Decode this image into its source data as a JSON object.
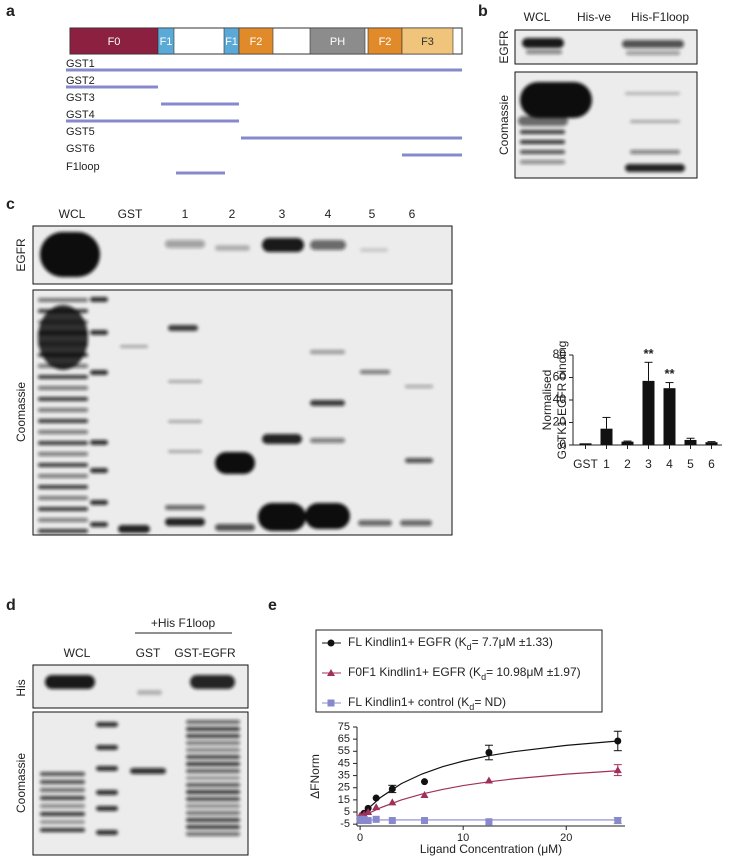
{
  "panel_labels": [
    "a",
    "b",
    "c",
    "d",
    "e"
  ],
  "panel_a": {
    "domains": [
      "F0",
      "F1",
      "F1",
      "F2",
      "PH",
      "F2",
      "F3"
    ],
    "constructs": [
      "GST1",
      "GST2",
      "GST3",
      "GST4",
      "GST5",
      "GST6",
      "F1loop"
    ]
  },
  "panel_b": {
    "lanes": [
      "WCL",
      "His-ve",
      "His-F1loop"
    ],
    "blots": [
      "EGFR",
      "Coomassie"
    ]
  },
  "panel_c": {
    "lanes": [
      "WCL",
      "GST",
      "1",
      "2",
      "3",
      "4",
      "5",
      "6"
    ],
    "blots": [
      "EGFR",
      "Coomassie"
    ]
  },
  "panel_d": {
    "treatment": "+His F1loop",
    "lanes": [
      "WCL",
      "GST",
      "GST-EGFR"
    ],
    "blots": [
      "His",
      "Coomassie"
    ]
  },
  "chart_data": [
    {
      "type": "bar",
      "categories": [
        "GST",
        "1",
        "2",
        "3",
        "4",
        "5",
        "6"
      ],
      "values": [
        1.5,
        14.5,
        3,
        57,
        50.5,
        4.5,
        2.5
      ],
      "errors": [
        0,
        10,
        0.5,
        16.5,
        5,
        1.5,
        0.5
      ],
      "color": "#111111",
      "ylabel": [
        "Normalised",
        "GSTK1-EGFR binding"
      ],
      "ylim": [
        0,
        80
      ],
      "yticks": [
        0,
        20,
        40,
        60,
        80
      ],
      "annotations": [
        {
          "text": "**",
          "category": "3"
        },
        {
          "text": "**",
          "category": "4"
        }
      ]
    },
    {
      "type": "scatter",
      "xlabel": "Ligand Concentration (μM)",
      "ylabel": "ΔFNorm",
      "xlim": [
        -0.3,
        25.7
      ],
      "ylim": [
        -6.5,
        75
      ],
      "xticks": [
        0,
        10,
        20
      ],
      "yticks": [
        -5,
        5,
        15,
        25,
        35,
        45,
        55,
        65,
        75
      ],
      "series": [
        {
          "name": [
            "FL Kindlin1+ EGFR (K",
            "d",
            "= 7.7μM ±1.33)"
          ],
          "color": "#111111",
          "marker": "circle",
          "x": [
            0,
            0.1,
            0.2,
            0.39,
            0.78,
            1.56,
            3.125,
            6.25,
            12.5,
            25
          ],
          "values": [
            -2,
            -0.5,
            1,
            4,
            8,
            16.5,
            24,
            30,
            54,
            63.5
          ],
          "errors": [
            null,
            null,
            null,
            null,
            null,
            null,
            3,
            null,
            6,
            8
          ],
          "fit_x": [
            0,
            1,
            2,
            4,
            6,
            8,
            10,
            12.5,
            15,
            20,
            25
          ],
          "fit_values": [
            0,
            9.5,
            17.1,
            28.4,
            36.3,
            42.3,
            46.9,
            51.4,
            54.8,
            59.9,
            63.5
          ]
        },
        {
          "name": [
            "F0F1 Kindlin1+ EGFR (K",
            "d",
            "= 10.98μM ±1.97)"
          ],
          "color": "#a0305a",
          "marker": "triangle",
          "x": [
            0,
            0.1,
            0.2,
            0.39,
            0.78,
            1.56,
            3.125,
            6.25,
            12.5,
            25
          ],
          "values": [
            2,
            1,
            1,
            3,
            5,
            9,
            13,
            19,
            31,
            39.5
          ],
          "errors": [
            null,
            null,
            null,
            null,
            null,
            null,
            null,
            null,
            null,
            4.5
          ],
          "fit_x": [
            0,
            1,
            2,
            4,
            6,
            8,
            10,
            12.5,
            15,
            20,
            25
          ],
          "fit_values": [
            0,
            4.7,
            8.6,
            15,
            19.8,
            23.6,
            26.8,
            29.9,
            32.4,
            36.2,
            39
          ]
        },
        {
          "name": [
            "FL Kindlin1+ control (K",
            "d",
            "= ND)"
          ],
          "color": "#8888cc",
          "marker": "square",
          "x": [
            0,
            0.1,
            0.2,
            0.39,
            0.78,
            1.56,
            3.125,
            6.25,
            12.5,
            25
          ],
          "values": [
            -1,
            -1,
            -2,
            -1,
            -2,
            -1,
            -2,
            -2,
            -3,
            -2
          ],
          "errors": [
            null,
            null,
            null,
            null,
            null,
            null,
            null,
            null,
            null,
            2.5
          ],
          "fit_x": [
            0,
            25
          ],
          "fit_values": [
            -1.5,
            -1.5
          ]
        }
      ]
    }
  ]
}
